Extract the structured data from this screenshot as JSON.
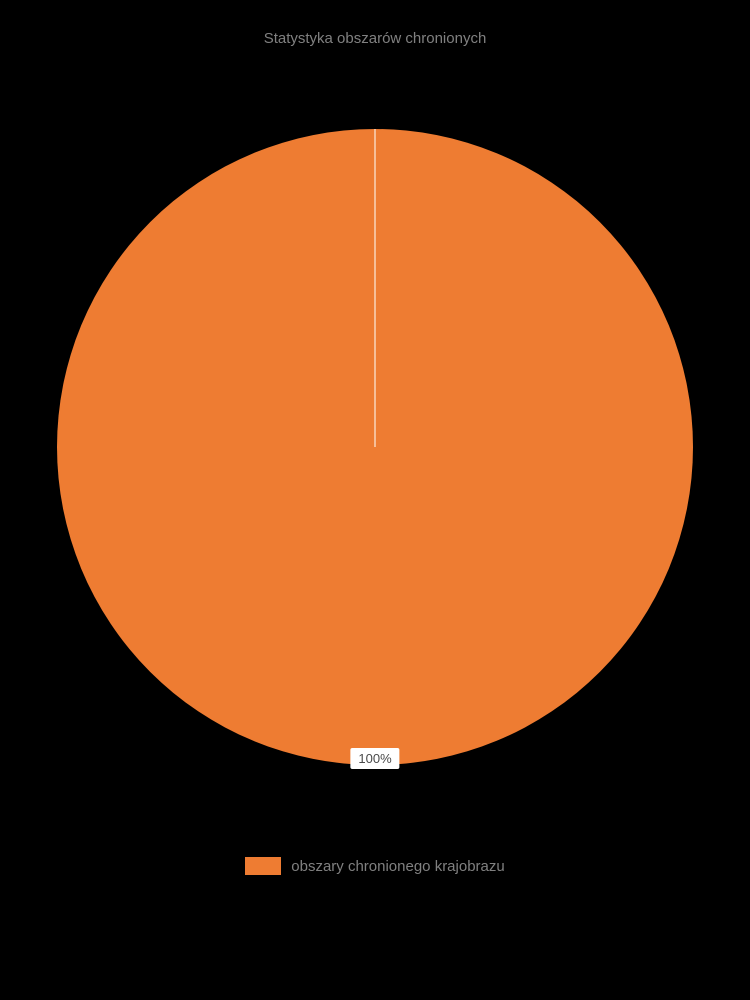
{
  "chart": {
    "type": "pie",
    "title": "Statystyka obszarów chronionych",
    "title_fontsize": 15,
    "title_color": "#808080",
    "background_color": "#000000",
    "slices": [
      {
        "label": "obszary chronionego krajobrazu",
        "value": 100,
        "percentage_label": "100%",
        "color": "#ee7c32"
      }
    ],
    "slice_border_color": "#ffffff",
    "slice_border_width": 1,
    "percentage_label_bg": "#ffffff",
    "percentage_label_color": "#4a4a4a",
    "percentage_label_fontsize": 13,
    "legend_label_color": "#808080",
    "legend_label_fontsize": 15,
    "legend_swatch_width": 36,
    "legend_swatch_height": 18,
    "pie_diameter": 640
  }
}
